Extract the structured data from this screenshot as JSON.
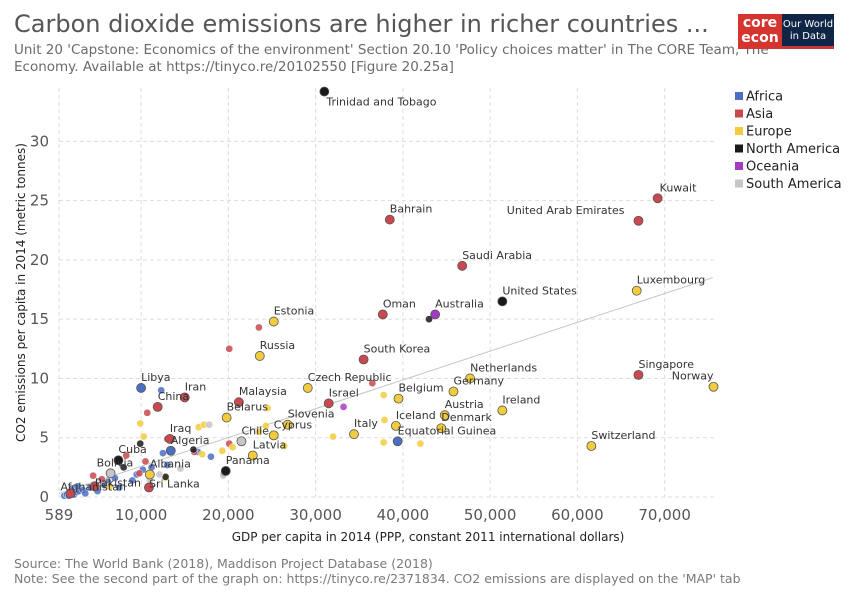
{
  "header": {
    "title": "Carbon dioxide emissions are higher in richer countries ...",
    "subtitle": "Unit 20 'Capstone: Economics of the environment' Section 20.10 'Policy choices matter' in The CORE Team, The Economy. Available at https://tinyco.re/20102550 [Figure 20.25a]"
  },
  "logo": {
    "core_line1": "core",
    "core_line2": "econ",
    "owid_line1": "Our World",
    "owid_line2": "in Data"
  },
  "footer": {
    "source": "Source: The World Bank (2018), Maddison Project Database (2018)",
    "note": "Note: See the second part of the graph on: https://tinyco.re/2371834. CO2 emissions are displayed on the 'MAP' tab"
  },
  "chart_data": {
    "type": "scatter",
    "xlabel": "GDP per capita in 2014 (PPP, constant 2011 international dollars)",
    "ylabel": "CO2 emissions per capita in 2014 (metric tonnes)",
    "xlim": [
      589,
      76000
    ],
    "ylim": [
      0,
      34.5
    ],
    "x_ticks": [
      {
        "value": 589,
        "label": "589"
      },
      {
        "value": 10000,
        "label": "10,000"
      },
      {
        "value": 20000,
        "label": "20,000"
      },
      {
        "value": 30000,
        "label": "30,000"
      },
      {
        "value": 40000,
        "label": "40,000"
      },
      {
        "value": 50000,
        "label": "50,000"
      },
      {
        "value": 60000,
        "label": "60,000"
      },
      {
        "value": 70000,
        "label": "70,000"
      }
    ],
    "y_ticks": [
      {
        "value": 0,
        "label": "0"
      },
      {
        "value": 5,
        "label": "5"
      },
      {
        "value": 10,
        "label": "10"
      },
      {
        "value": 15,
        "label": "15"
      },
      {
        "value": 20,
        "label": "20"
      },
      {
        "value": 25,
        "label": "25"
      },
      {
        "value": 30,
        "label": "30"
      }
    ],
    "grid": true,
    "legend_position": "right",
    "colors": {
      "Africa": "#4c6fc4",
      "Asia": "#c9494f",
      "Europe": "#f2cc3d",
      "North America": "#1a1a1a",
      "Oceania": "#a43bbf",
      "South America": "#c6c6c6"
    },
    "legend": [
      "Africa",
      "Asia",
      "Europe",
      "North America",
      "Oceania",
      "South America"
    ],
    "trendline": {
      "x": [
        589,
        75500
      ],
      "y": [
        0.3,
        18.5
      ]
    },
    "labeled_points": [
      {
        "label": "Trinidad and Tobago",
        "x": 31000,
        "y": 34.2,
        "region": "North America"
      },
      {
        "label": "Kuwait",
        "x": 69200,
        "y": 25.2,
        "region": "Asia"
      },
      {
        "label": "United Arab Emirates",
        "x": 67000,
        "y": 23.3,
        "region": "Asia"
      },
      {
        "label": "Bahrain",
        "x": 38500,
        "y": 23.4,
        "region": "Asia"
      },
      {
        "label": "Saudi Arabia",
        "x": 46800,
        "y": 19.5,
        "region": "Asia"
      },
      {
        "label": "Luxembourg",
        "x": 66800,
        "y": 17.4,
        "region": "Europe"
      },
      {
        "label": "United States",
        "x": 51400,
        "y": 16.5,
        "region": "North America"
      },
      {
        "label": "Oman",
        "x": 37700,
        "y": 15.4,
        "region": "Asia"
      },
      {
        "label": "Australia",
        "x": 43700,
        "y": 15.4,
        "region": "Oceania"
      },
      {
        "label": "Estonia",
        "x": 25200,
        "y": 14.8,
        "region": "Europe"
      },
      {
        "label": "South Korea",
        "x": 35500,
        "y": 11.6,
        "region": "Asia"
      },
      {
        "label": "Russia",
        "x": 23600,
        "y": 11.9,
        "region": "Europe"
      },
      {
        "label": "Singapore",
        "x": 67000,
        "y": 10.3,
        "region": "Asia"
      },
      {
        "label": "Norway",
        "x": 75600,
        "y": 9.3,
        "region": "Europe"
      },
      {
        "label": "Netherlands",
        "x": 47700,
        "y": 10.0,
        "region": "Europe"
      },
      {
        "label": "Germany",
        "x": 45800,
        "y": 8.9,
        "region": "Europe"
      },
      {
        "label": "Czech Republic",
        "x": 29100,
        "y": 9.2,
        "region": "Europe"
      },
      {
        "label": "Belgium",
        "x": 39500,
        "y": 8.3,
        "region": "Europe"
      },
      {
        "label": "Libya",
        "x": 10000,
        "y": 9.2,
        "region": "Africa"
      },
      {
        "label": "Iran",
        "x": 15000,
        "y": 8.4,
        "region": "Asia"
      },
      {
        "label": "Malaysia",
        "x": 21200,
        "y": 8.0,
        "region": "Asia"
      },
      {
        "label": "China",
        "x": 11900,
        "y": 7.6,
        "region": "Asia"
      },
      {
        "label": "Israel",
        "x": 31500,
        "y": 7.9,
        "region": "Asia"
      },
      {
        "label": "Ireland",
        "x": 51400,
        "y": 7.3,
        "region": "Europe"
      },
      {
        "label": "Austria",
        "x": 44800,
        "y": 6.9,
        "region": "Europe"
      },
      {
        "label": "Belarus",
        "x": 19800,
        "y": 6.7,
        "region": "Europe"
      },
      {
        "label": "Slovenia",
        "x": 26800,
        "y": 6.1,
        "region": "Europe"
      },
      {
        "label": "Denmark",
        "x": 44400,
        "y": 5.8,
        "region": "Europe"
      },
      {
        "label": "Iceland",
        "x": 39200,
        "y": 6.0,
        "region": "Europe"
      },
      {
        "label": "Cyprus",
        "x": 25200,
        "y": 5.2,
        "region": "Europe"
      },
      {
        "label": "Italy",
        "x": 34400,
        "y": 5.3,
        "region": "Europe"
      },
      {
        "label": "Equatorial Guinea",
        "x": 39400,
        "y": 4.7,
        "region": "Africa"
      },
      {
        "label": "Chile",
        "x": 21500,
        "y": 4.7,
        "region": "South America"
      },
      {
        "label": "Switzerland",
        "x": 61600,
        "y": 4.3,
        "region": "Europe"
      },
      {
        "label": "Iraq",
        "x": 13300,
        "y": 4.9,
        "region": "Asia"
      },
      {
        "label": "Algeria",
        "x": 13400,
        "y": 3.9,
        "region": "Africa"
      },
      {
        "label": "Latvia",
        "x": 22800,
        "y": 3.5,
        "region": "Europe"
      },
      {
        "label": "Cuba",
        "x": 7400,
        "y": 3.1,
        "region": "North America"
      },
      {
        "label": "Panama",
        "x": 19700,
        "y": 2.2,
        "region": "North America"
      },
      {
        "label": "Bolivia",
        "x": 6500,
        "y": 2.0,
        "region": "South America"
      },
      {
        "label": "Albania",
        "x": 11000,
        "y": 1.9,
        "region": "Europe"
      },
      {
        "label": "Sri Lanka",
        "x": 10900,
        "y": 0.8,
        "region": "Asia"
      },
      {
        "label": "Afghanistan",
        "x": 1900,
        "y": 0.3,
        "region": "Asia"
      },
      {
        "label": "Pakistan",
        "x": 4700,
        "y": 0.9,
        "region": "Asia"
      }
    ],
    "other_points": [
      {
        "x": 1200,
        "y": 0.1,
        "region": "Africa"
      },
      {
        "x": 1500,
        "y": 0.2,
        "region": "Africa"
      },
      {
        "x": 1700,
        "y": 0.1,
        "region": "Africa"
      },
      {
        "x": 2000,
        "y": 0.3,
        "region": "Africa"
      },
      {
        "x": 2300,
        "y": 0.2,
        "region": "Africa"
      },
      {
        "x": 2600,
        "y": 0.4,
        "region": "Africa"
      },
      {
        "x": 2900,
        "y": 0.5,
        "region": "Africa"
      },
      {
        "x": 3300,
        "y": 0.6,
        "region": "Africa"
      },
      {
        "x": 3600,
        "y": 0.3,
        "region": "Africa"
      },
      {
        "x": 2100,
        "y": 0.7,
        "region": "Africa"
      },
      {
        "x": 2700,
        "y": 0.9,
        "region": "Africa"
      },
      {
        "x": 4200,
        "y": 0.8,
        "region": "Africa"
      },
      {
        "x": 5000,
        "y": 0.5,
        "region": "Africa"
      },
      {
        "x": 5800,
        "y": 1.0,
        "region": "Africa"
      },
      {
        "x": 6200,
        "y": 1.3,
        "region": "Africa"
      },
      {
        "x": 7000,
        "y": 1.6,
        "region": "Africa"
      },
      {
        "x": 9500,
        "y": 1.9,
        "region": "Africa"
      },
      {
        "x": 10200,
        "y": 2.3,
        "region": "Africa"
      },
      {
        "x": 11200,
        "y": 2.5,
        "region": "Africa"
      },
      {
        "x": 13000,
        "y": 2.7,
        "region": "Africa"
      },
      {
        "x": 12500,
        "y": 3.7,
        "region": "Africa"
      },
      {
        "x": 16500,
        "y": 3.8,
        "region": "Africa"
      },
      {
        "x": 18000,
        "y": 3.4,
        "region": "Africa"
      },
      {
        "x": 12300,
        "y": 9.0,
        "region": "Africa"
      },
      {
        "x": 9000,
        "y": 1.4,
        "region": "Africa"
      },
      {
        "x": 7500,
        "y": 0.8,
        "region": "Africa"
      },
      {
        "x": 4500,
        "y": 1.8,
        "region": "Asia"
      },
      {
        "x": 5500,
        "y": 1.5,
        "region": "Asia"
      },
      {
        "x": 8300,
        "y": 3.5,
        "region": "Asia"
      },
      {
        "x": 9800,
        "y": 2.0,
        "region": "Asia"
      },
      {
        "x": 10700,
        "y": 7.1,
        "region": "Asia"
      },
      {
        "x": 13000,
        "y": 4.9,
        "region": "Asia"
      },
      {
        "x": 16100,
        "y": 3.8,
        "region": "Asia"
      },
      {
        "x": 20100,
        "y": 4.5,
        "region": "Asia"
      },
      {
        "x": 20100,
        "y": 12.5,
        "region": "Asia"
      },
      {
        "x": 23500,
        "y": 14.3,
        "region": "Asia"
      },
      {
        "x": 36500,
        "y": 9.6,
        "region": "Asia"
      },
      {
        "x": 10500,
        "y": 3.0,
        "region": "Asia"
      },
      {
        "x": 9900,
        "y": 6.2,
        "region": "Europe"
      },
      {
        "x": 10300,
        "y": 5.1,
        "region": "Europe"
      },
      {
        "x": 16600,
        "y": 5.9,
        "region": "Europe"
      },
      {
        "x": 17200,
        "y": 6.1,
        "region": "Europe"
      },
      {
        "x": 17000,
        "y": 3.6,
        "region": "Europe"
      },
      {
        "x": 19300,
        "y": 3.9,
        "region": "Europe"
      },
      {
        "x": 20500,
        "y": 4.2,
        "region": "Europe"
      },
      {
        "x": 23500,
        "y": 5.5,
        "region": "Europe"
      },
      {
        "x": 24300,
        "y": 6.0,
        "region": "Europe"
      },
      {
        "x": 24500,
        "y": 7.5,
        "region": "Europe"
      },
      {
        "x": 26400,
        "y": 4.3,
        "region": "Europe"
      },
      {
        "x": 32000,
        "y": 5.1,
        "region": "Europe"
      },
      {
        "x": 37900,
        "y": 6.5,
        "region": "Europe"
      },
      {
        "x": 37800,
        "y": 4.6,
        "region": "Europe"
      },
      {
        "x": 42000,
        "y": 4.5,
        "region": "Europe"
      },
      {
        "x": 37800,
        "y": 8.6,
        "region": "Europe"
      },
      {
        "x": 12800,
        "y": 1.6,
        "region": "Europe"
      },
      {
        "x": 6400,
        "y": 0.9,
        "region": "Europe"
      },
      {
        "x": 16000,
        "y": 4.0,
        "region": "North America"
      },
      {
        "x": 12800,
        "y": 1.7,
        "region": "North America"
      },
      {
        "x": 8000,
        "y": 2.5,
        "region": "North America"
      },
      {
        "x": 9900,
        "y": 4.5,
        "region": "North America"
      },
      {
        "x": 43000,
        "y": 15.0,
        "region": "North America"
      },
      {
        "x": 19500,
        "y": 2.0,
        "region": "North America"
      },
      {
        "x": 33200,
        "y": 7.6,
        "region": "Oceania"
      },
      {
        "x": 17800,
        "y": 6.1,
        "region": "South America"
      },
      {
        "x": 19400,
        "y": 1.8,
        "region": "South America"
      },
      {
        "x": 14500,
        "y": 2.4,
        "region": "South America"
      },
      {
        "x": 12100,
        "y": 1.9,
        "region": "South America"
      },
      {
        "x": 6400,
        "y": 2.1,
        "region": "South America"
      },
      {
        "x": 11000,
        "y": 1.4,
        "region": "South America"
      }
    ]
  }
}
